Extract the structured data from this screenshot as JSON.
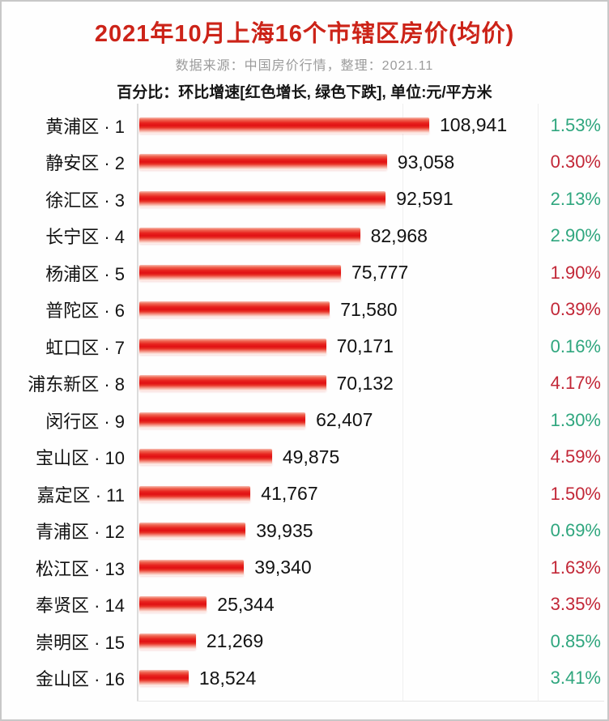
{
  "header": {
    "title": "2021年10月上海16个市辖区房价(均价)",
    "subtitle": "数据来源：中国房价行情，整理：2021.11",
    "note": "百分比：环比增速[红色增长, 绿色下跌], 单位:元/平方米"
  },
  "colors": {
    "title_red": "#cc2318",
    "bar_core_red": "#e01013",
    "pct_up_red": "#c22737",
    "pct_down_green": "#2fa67e"
  },
  "chart_data": {
    "type": "bar",
    "orientation": "horizontal",
    "title": "2021年10月上海16个市辖区房价(均价)",
    "unit": "元/平方米",
    "xlim": [
      0,
      108941
    ],
    "max_value": 108941,
    "legend": "百分比为环比增速：红色增长，绿色下跌",
    "rows": [
      {
        "label": "黄浦区 · 1",
        "value": 108941,
        "value_text": "108,941",
        "pct": "1.53%",
        "direction": "down"
      },
      {
        "label": "静安区 · 2",
        "value": 93058,
        "value_text": "93,058",
        "pct": "0.30%",
        "direction": "up"
      },
      {
        "label": "徐汇区 · 3",
        "value": 92591,
        "value_text": "92,591",
        "pct": "2.13%",
        "direction": "down"
      },
      {
        "label": "长宁区 · 4",
        "value": 82968,
        "value_text": "82,968",
        "pct": "2.90%",
        "direction": "down"
      },
      {
        "label": "杨浦区 · 5",
        "value": 75777,
        "value_text": "75,777",
        "pct": "1.90%",
        "direction": "up"
      },
      {
        "label": "普陀区 · 6",
        "value": 71580,
        "value_text": "71,580",
        "pct": "0.39%",
        "direction": "up"
      },
      {
        "label": "虹口区 · 7",
        "value": 70171,
        "value_text": "70,171",
        "pct": "0.16%",
        "direction": "down"
      },
      {
        "label": "浦东新区 · 8",
        "value": 70132,
        "value_text": "70,132",
        "pct": "4.17%",
        "direction": "up"
      },
      {
        "label": "闵行区 · 9",
        "value": 62407,
        "value_text": "62,407",
        "pct": "1.30%",
        "direction": "down"
      },
      {
        "label": "宝山区 · 10",
        "value": 49875,
        "value_text": "49,875",
        "pct": "4.59%",
        "direction": "up"
      },
      {
        "label": "嘉定区 · 11",
        "value": 41767,
        "value_text": "41,767",
        "pct": "1.50%",
        "direction": "up"
      },
      {
        "label": "青浦区 · 12",
        "value": 39935,
        "value_text": "39,935",
        "pct": "0.69%",
        "direction": "down"
      },
      {
        "label": "松江区 · 13",
        "value": 39340,
        "value_text": "39,340",
        "pct": "1.63%",
        "direction": "up"
      },
      {
        "label": "奉贤区 · 14",
        "value": 25344,
        "value_text": "25,344",
        "pct": "3.35%",
        "direction": "up"
      },
      {
        "label": "崇明区 · 15",
        "value": 21269,
        "value_text": "21,269",
        "pct": "0.85%",
        "direction": "down"
      },
      {
        "label": "金山区 · 16",
        "value": 18524,
        "value_text": "18,524",
        "pct": "3.41%",
        "direction": "down"
      }
    ]
  }
}
